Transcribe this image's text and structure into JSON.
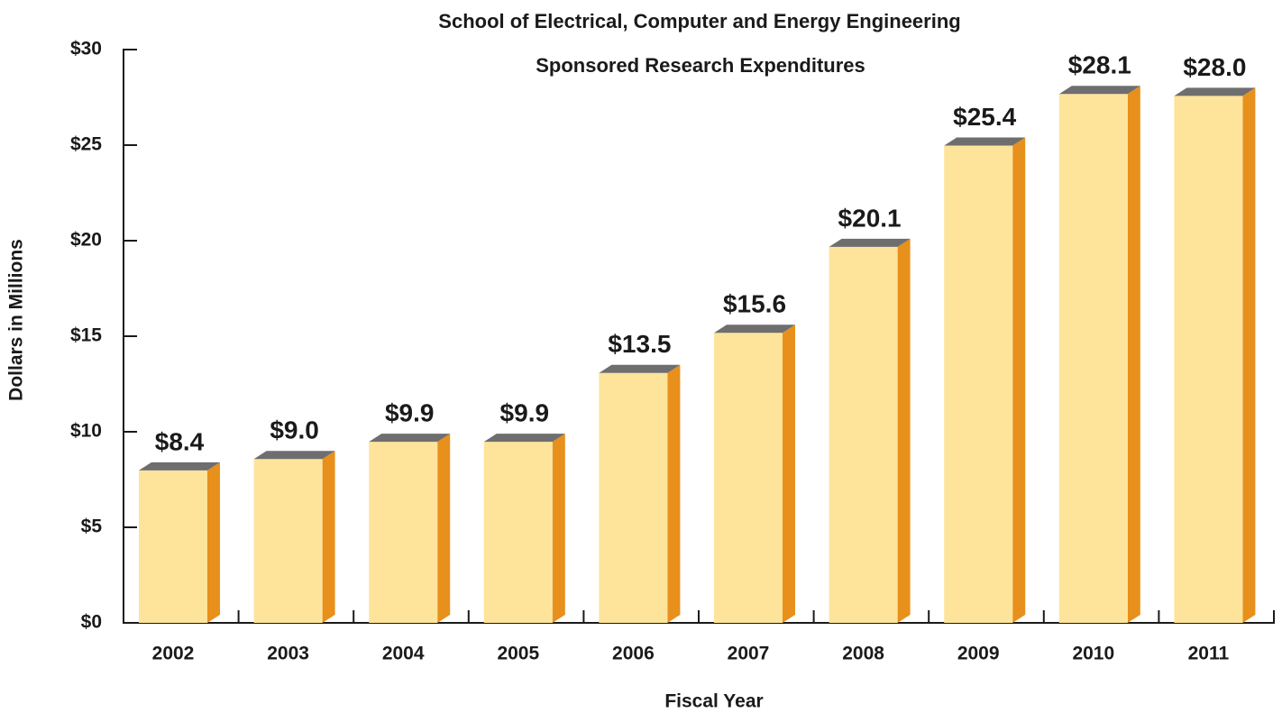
{
  "chart_data": {
    "type": "bar3d",
    "title": "School of Electrical, Computer and Energy Engineering",
    "subtitle": "Sponsored Research Expenditures",
    "x_label": "Fiscal Year",
    "y_label": "Dollars in Millions",
    "categories": [
      "2002",
      "2003",
      "2004",
      "2005",
      "2006",
      "2007",
      "2008",
      "2009",
      "2010",
      "2011"
    ],
    "values": [
      8.4,
      9.0,
      9.9,
      9.9,
      13.5,
      15.6,
      20.1,
      25.4,
      28.1,
      28.0
    ],
    "value_labels": [
      "$8.4",
      "$9.0",
      "$9.9",
      "$9.9",
      "$13.5",
      "$15.6",
      "$20.1",
      "$25.4",
      "$28.1",
      "$28.0"
    ],
    "colors": {
      "front": "#fde49a",
      "side": "#e8901c",
      "top": "#6e6e6e"
    },
    "ylim": [
      0,
      30
    ],
    "yticks": [
      {
        "value": 0,
        "label": "$0"
      },
      {
        "value": 5,
        "label": "$5"
      },
      {
        "value": 10,
        "label": "$10"
      },
      {
        "value": 15,
        "label": "$15"
      },
      {
        "value": 20,
        "label": "$20"
      },
      {
        "value": 25,
        "label": "$25"
      },
      {
        "value": 30,
        "label": "$30"
      }
    ],
    "grid": false
  }
}
